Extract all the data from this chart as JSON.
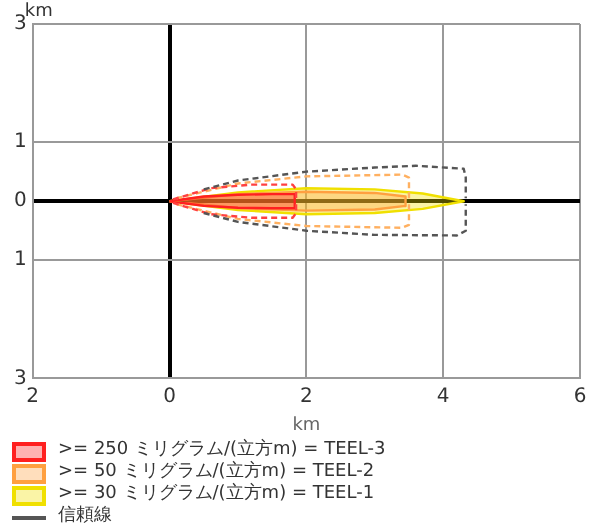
{
  "chart_data": {
    "type": "line",
    "xlabel": "km",
    "ylabel": "km",
    "xlim": [
      -2,
      6
    ],
    "ylim": [
      -3,
      3
    ],
    "xticks": [
      {
        "value": -2,
        "label": "2"
      },
      0,
      2,
      4,
      6
    ],
    "yticks": [
      {
        "value": -3,
        "label": "3"
      },
      {
        "value": -1,
        "label": "1"
      },
      0,
      1,
      3
    ],
    "grid": true,
    "legend": "bottom",
    "marker": "none",
    "series": [
      {
        "name": ">= 250 ミリグラム/(立方m) = TEEL-3",
        "type": "area",
        "color": "#ff2020",
        "x": [
          0,
          0.5,
          1,
          1.5,
          1.83,
          1.83,
          1.5,
          1,
          0.5,
          0
        ],
        "values": [
          0,
          0.08,
          0.11,
          0.12,
          0.12,
          -0.12,
          -0.12,
          -0.11,
          -0.08,
          0
        ]
      },
      {
        "name": ">= 50 ミリグラム/(立方m) = TEEL-2",
        "type": "area",
        "color": "#ffa040",
        "x": [
          0,
          1,
          2,
          3,
          3.45,
          3.45,
          3,
          2,
          1,
          0
        ],
        "values": [
          0,
          0.12,
          0.16,
          0.14,
          0.08,
          -0.08,
          -0.14,
          -0.16,
          -0.12,
          0
        ]
      },
      {
        "name": ">= 30 ミリグラム/(立方m) = TEEL-1",
        "type": "area",
        "color": "#f0e000",
        "x": [
          0,
          1,
          2,
          3,
          3.7,
          4.3,
          3.7,
          3,
          2,
          1,
          0
        ],
        "values": [
          0,
          0.15,
          0.22,
          0.2,
          0.13,
          0,
          -0.13,
          -0.2,
          -0.22,
          -0.15,
          0
        ]
      },
      {
        "name": "信頼線",
        "type": "line",
        "line_style": "dashed",
        "color": "#555555",
        "x": [
          0.5,
          1,
          2,
          3,
          3.6,
          4.3,
          4.33,
          4.33
        ],
        "values": [
          0.2,
          0.35,
          0.5,
          0.57,
          0.6,
          0.55,
          0.4,
          0.05
        ]
      },
      {
        "type": "line",
        "line_style": "dashed",
        "color": "#555555",
        "x": [
          0.5,
          1,
          2,
          3,
          4.2,
          4.33,
          4.33
        ],
        "values": [
          -0.2,
          -0.35,
          -0.5,
          -0.57,
          -0.58,
          -0.5,
          -0.05
        ]
      },
      {
        "type": "line",
        "line_style": "dashed",
        "color": "#ff4040",
        "x": [
          0.05,
          0.6,
          1.2,
          1.8,
          1.85,
          1.85
        ],
        "values": [
          0.03,
          0.22,
          0.28,
          0.28,
          0.2,
          0.04
        ]
      },
      {
        "type": "line",
        "line_style": "dashed",
        "color": "#ff4040",
        "x": [
          0.05,
          0.6,
          1.2,
          1.8,
          1.85,
          1.85
        ],
        "values": [
          -0.03,
          -0.22,
          -0.28,
          -0.28,
          -0.2,
          -0.04
        ]
      },
      {
        "type": "line",
        "line_style": "dashed",
        "color": "#ffb060",
        "x": [
          0.1,
          1,
          2,
          3.4,
          3.5,
          3.5
        ],
        "values": [
          0.05,
          0.3,
          0.42,
          0.45,
          0.4,
          0.04
        ]
      },
      {
        "type": "line",
        "line_style": "dashed",
        "color": "#ffb060",
        "x": [
          0.1,
          1,
          2,
          3.4,
          3.5,
          3.5
        ],
        "values": [
          -0.05,
          -0.3,
          -0.42,
          -0.45,
          -0.4,
          -0.04
        ]
      }
    ]
  }
}
